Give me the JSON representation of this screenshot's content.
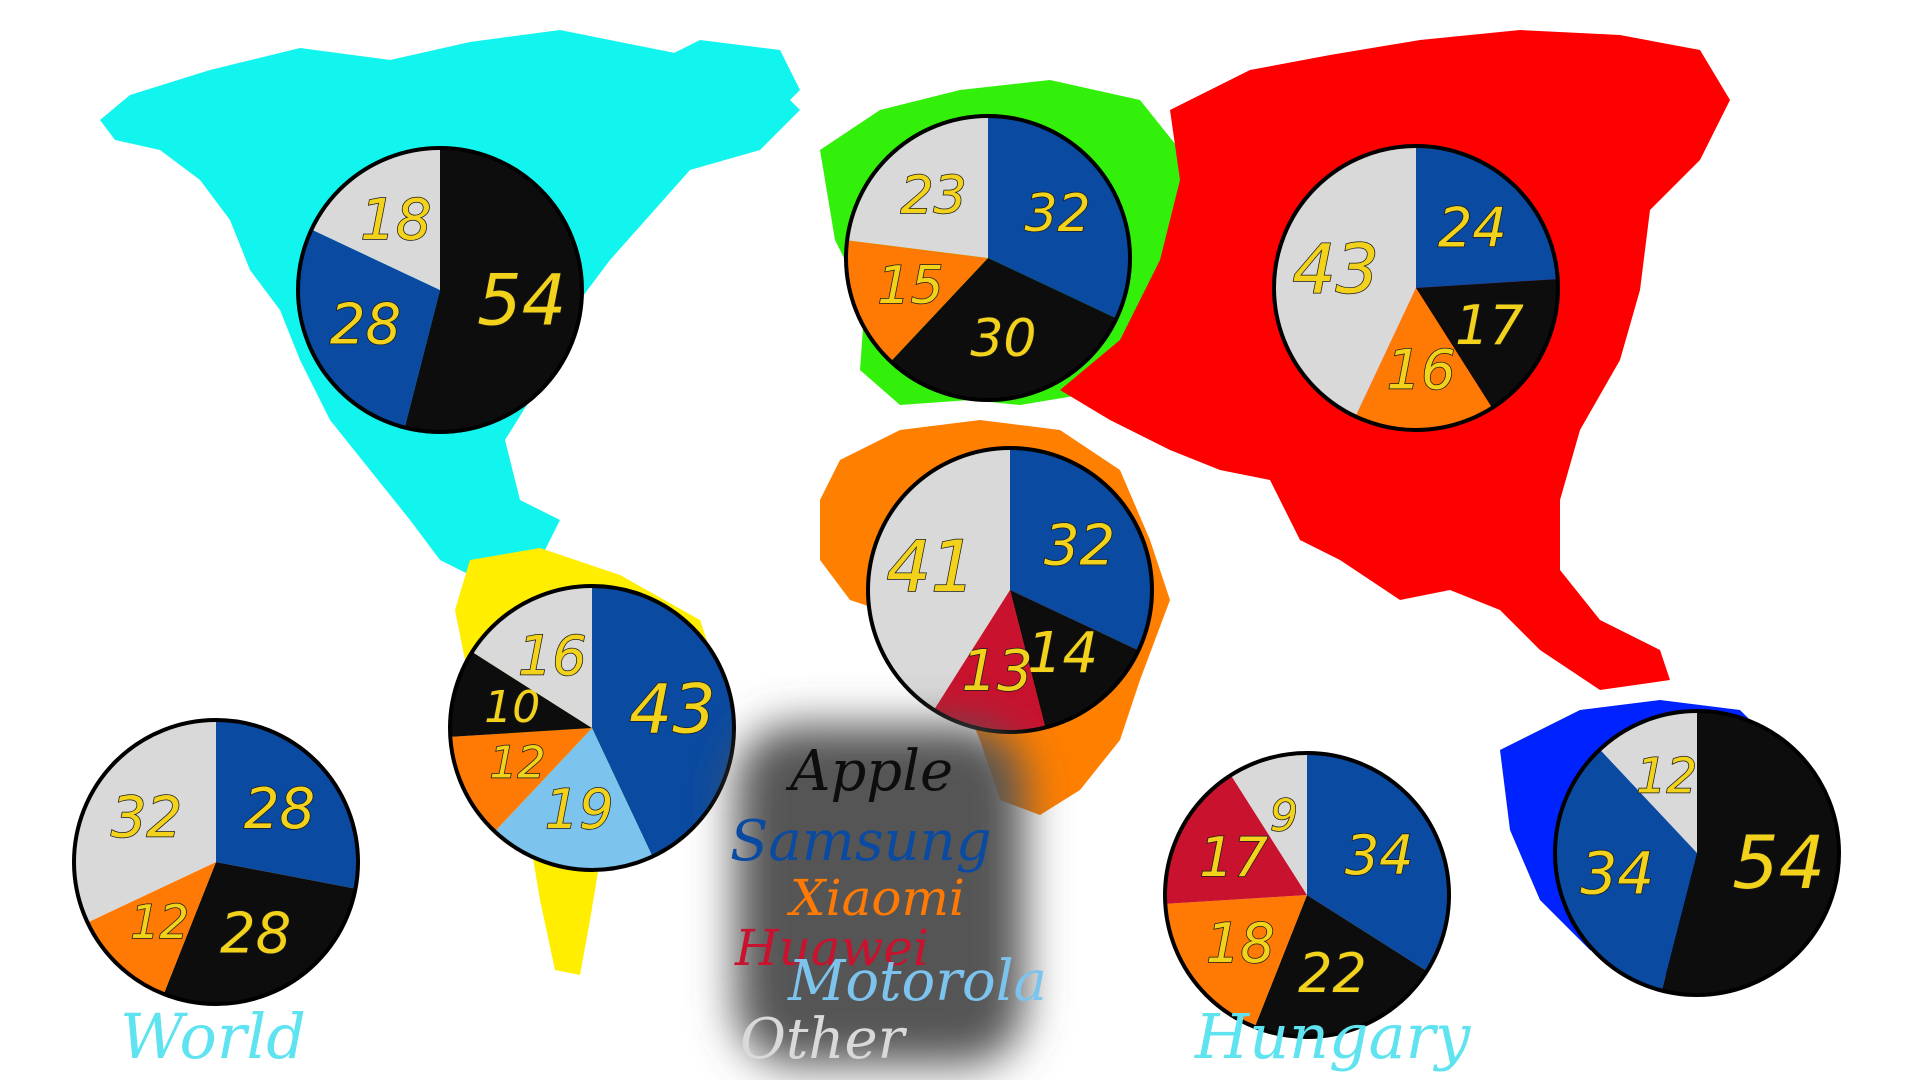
{
  "colors": {
    "Apple": "#0d0d0d",
    "Samsung": "#0a4aa0",
    "Xiaomi": "#ff7a05",
    "Huawei": "#c8122e",
    "Motorola": "#7cc3ee",
    "Other": "#d9d9d9",
    "north_america": "#12f5ee",
    "south_america": "#ffee00",
    "europe": "#33f00a",
    "africa": "#ff7f00",
    "asia": "#ff0000",
    "oceania": "#0022ff",
    "label_fill": "#f2d21a",
    "caption": "#5fe3f0",
    "legend_glow": "#555555"
  },
  "legend": [
    {
      "brand": "Apple",
      "label": "Apple"
    },
    {
      "brand": "Samsung",
      "label": "Samsung"
    },
    {
      "brand": "Xiaomi",
      "label": "Xiaomi"
    },
    {
      "brand": "Huawei",
      "label": "Huawei"
    },
    {
      "brand": "Motorola",
      "label": "Motorola"
    },
    {
      "brand": "Other",
      "label": "Other"
    }
  ],
  "captions": {
    "world": "World",
    "hungary": "Hungary"
  },
  "chart_data": [
    {
      "type": "pie",
      "region": "North America",
      "slices": [
        {
          "brand": "Apple",
          "value": 54
        },
        {
          "brand": "Samsung",
          "value": 28
        },
        {
          "brand": "Other",
          "value": 18
        }
      ]
    },
    {
      "type": "pie",
      "region": "Europe",
      "slices": [
        {
          "brand": "Samsung",
          "value": 32
        },
        {
          "brand": "Apple",
          "value": 30
        },
        {
          "brand": "Xiaomi",
          "value": 15
        },
        {
          "brand": "Other",
          "value": 23
        }
      ]
    },
    {
      "type": "pie",
      "region": "Asia",
      "slices": [
        {
          "brand": "Samsung",
          "value": 24
        },
        {
          "brand": "Apple",
          "value": 17
        },
        {
          "brand": "Xiaomi",
          "value": 16
        },
        {
          "brand": "Other",
          "value": 43
        }
      ]
    },
    {
      "type": "pie",
      "region": "Africa",
      "slices": [
        {
          "brand": "Samsung",
          "value": 32
        },
        {
          "brand": "Apple",
          "value": 14
        },
        {
          "brand": "Huawei",
          "value": 13
        },
        {
          "brand": "Other",
          "value": 41
        }
      ]
    },
    {
      "type": "pie",
      "region": "South America",
      "slices": [
        {
          "brand": "Samsung",
          "value": 43
        },
        {
          "brand": "Motorola",
          "value": 19
        },
        {
          "brand": "Xiaomi",
          "value": 12
        },
        {
          "brand": "Apple",
          "value": 10
        },
        {
          "brand": "Other",
          "value": 16
        }
      ]
    },
    {
      "type": "pie",
      "region": "World",
      "slices": [
        {
          "brand": "Samsung",
          "value": 28
        },
        {
          "brand": "Apple",
          "value": 28
        },
        {
          "brand": "Xiaomi",
          "value": 12
        },
        {
          "brand": "Other",
          "value": 32
        }
      ]
    },
    {
      "type": "pie",
      "region": "Hungary",
      "slices": [
        {
          "brand": "Samsung",
          "value": 34
        },
        {
          "brand": "Apple",
          "value": 22
        },
        {
          "brand": "Xiaomi",
          "value": 18
        },
        {
          "brand": "Huawei",
          "value": 17
        },
        {
          "brand": "Other",
          "value": 9
        }
      ]
    },
    {
      "type": "pie",
      "region": "Oceania",
      "slices": [
        {
          "brand": "Apple",
          "value": 54
        },
        {
          "brand": "Samsung",
          "value": 34
        },
        {
          "brand": "Other",
          "value": 12
        }
      ]
    }
  ]
}
